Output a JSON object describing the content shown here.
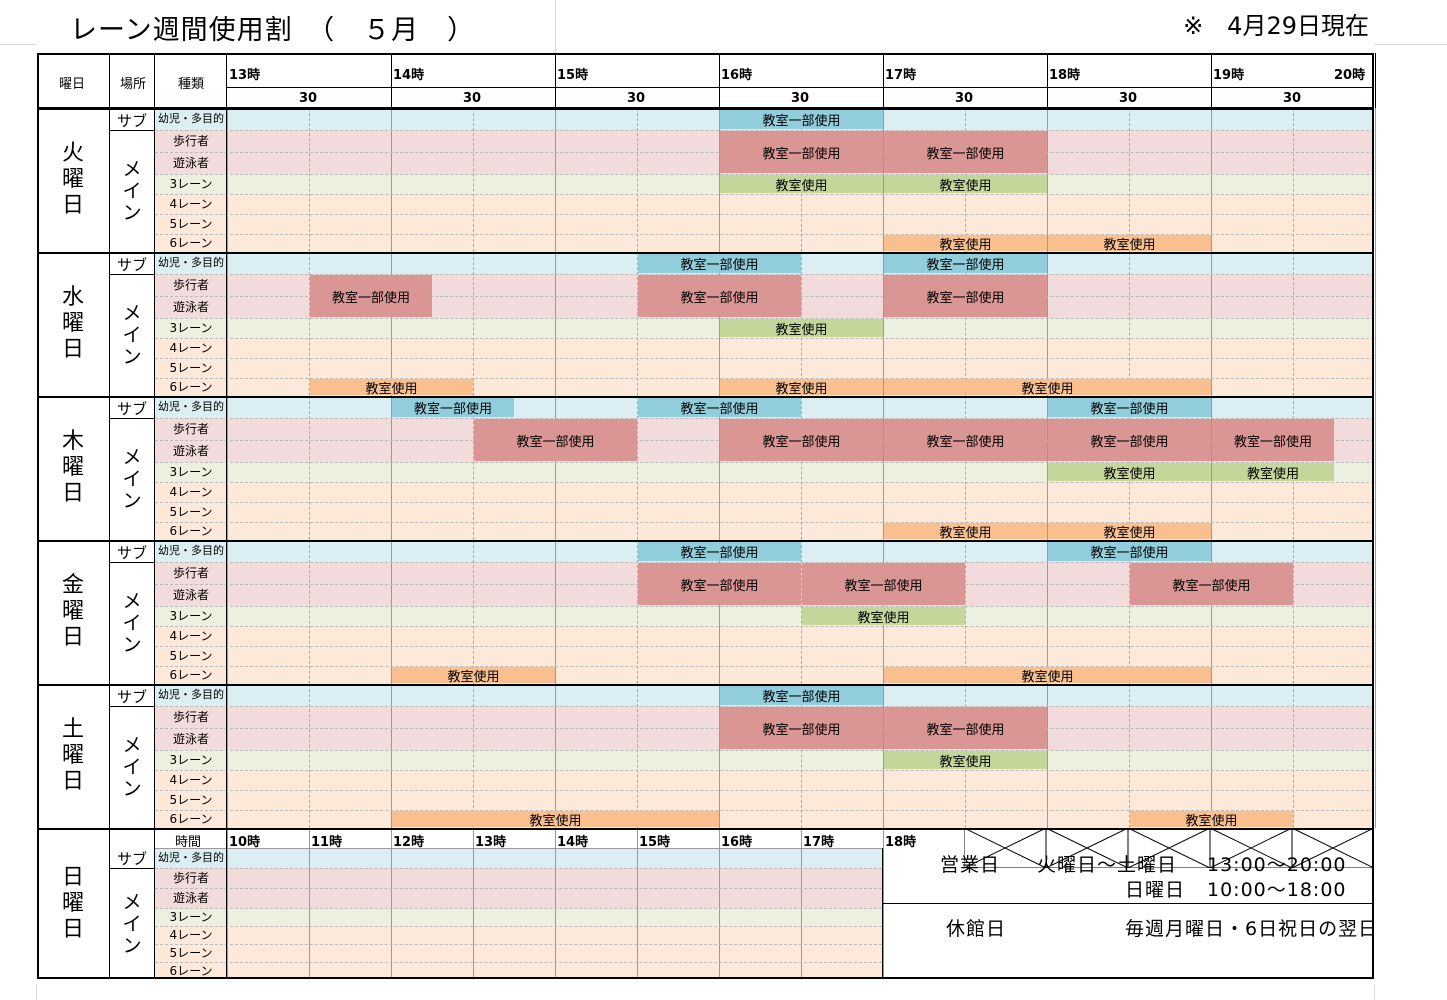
{
  "title": "レーン週間使用割　（　５月　）",
  "as_of": "※　4月29日現在",
  "header": {
    "day_label": "曜日",
    "place_label": "場所",
    "type_label": "種類",
    "hours": [
      "13時",
      "14時",
      "15時",
      "16時",
      "17時",
      "18時",
      "19時",
      "20時"
    ],
    "half_label": "30"
  },
  "places": {
    "sub": "サブ",
    "main": "メイン"
  },
  "categories": [
    "幼児・多目的",
    "歩行者",
    "遊泳者",
    "3レーン",
    "4レーン",
    "5レーン",
    "6レーン"
  ],
  "colors": {
    "sub_bg": "#daeef3",
    "walker_bg": "#f2dcdb",
    "lane3_bg": "#ebf1de",
    "lane_bg": "#fde9d9",
    "partial_sub": "#92cddc",
    "partial_main": "#da9694",
    "lane3_class": "#c4d79b",
    "lane6_class": "#fabf8f"
  },
  "days": [
    {
      "name": "火曜日",
      "chars": [
        "火",
        "曜",
        "日"
      ],
      "blocks": [
        {
          "row": "sub",
          "from": 16,
          "to": 17,
          "label": "教室一部使用"
        },
        {
          "row": "walk",
          "from": 16,
          "to": 17,
          "label": "教室一部使用"
        },
        {
          "row": "walk",
          "from": 17,
          "to": 18,
          "label": "教室一部使用"
        },
        {
          "row": "l3",
          "from": 16,
          "to": 17,
          "label": "教室使用"
        },
        {
          "row": "l3",
          "from": 17,
          "to": 18,
          "label": "教室使用"
        },
        {
          "row": "l6",
          "from": 17,
          "to": 18,
          "label": "教室使用"
        },
        {
          "row": "l6",
          "from": 18,
          "to": 19,
          "label": "教室使用"
        }
      ]
    },
    {
      "name": "水曜日",
      "chars": [
        "水",
        "曜",
        "日"
      ],
      "blocks": [
        {
          "row": "sub",
          "from": 15.5,
          "to": 16.5,
          "label": "教室一部使用"
        },
        {
          "row": "sub",
          "from": 17,
          "to": 18,
          "label": "教室一部使用"
        },
        {
          "row": "walk",
          "from": 13.5,
          "to": 14.25,
          "label": "教室一部使用"
        },
        {
          "row": "walk",
          "from": 15.5,
          "to": 16.5,
          "label": "教室一部使用"
        },
        {
          "row": "walk",
          "from": 17,
          "to": 18,
          "label": "教室一部使用"
        },
        {
          "row": "l3",
          "from": 16,
          "to": 17,
          "label": "教室使用"
        },
        {
          "row": "l6",
          "from": 13.5,
          "to": 14.5,
          "label": "教室使用"
        },
        {
          "row": "l6",
          "from": 16,
          "to": 17,
          "label": "教室使用"
        },
        {
          "row": "l6",
          "from": 17,
          "to": 19,
          "label": "教室使用"
        }
      ]
    },
    {
      "name": "木曜日",
      "chars": [
        "木",
        "曜",
        "日"
      ],
      "blocks": [
        {
          "row": "sub",
          "from": 14,
          "to": 14.75,
          "label": "教室一部使用"
        },
        {
          "row": "sub",
          "from": 15.5,
          "to": 16.5,
          "label": "教室一部使用"
        },
        {
          "row": "sub",
          "from": 18,
          "to": 19,
          "label": "教室一部使用"
        },
        {
          "row": "walk",
          "from": 14.5,
          "to": 15.5,
          "label": "教室一部使用"
        },
        {
          "row": "walk",
          "from": 16,
          "to": 17,
          "label": "教室一部使用"
        },
        {
          "row": "walk",
          "from": 17,
          "to": 18,
          "label": "教室一部使用"
        },
        {
          "row": "walk",
          "from": 18,
          "to": 19,
          "label": "教室一部使用"
        },
        {
          "row": "walk",
          "from": 19,
          "to": 19.75,
          "label": "教室一部使用"
        },
        {
          "row": "l3",
          "from": 18,
          "to": 19,
          "label": "教室使用"
        },
        {
          "row": "l3",
          "from": 19,
          "to": 19.75,
          "label": "教室使用"
        },
        {
          "row": "l6",
          "from": 17,
          "to": 18,
          "label": "教室使用"
        },
        {
          "row": "l6",
          "from": 18,
          "to": 19,
          "label": "教室使用"
        }
      ]
    },
    {
      "name": "金曜日",
      "chars": [
        "金",
        "曜",
        "日"
      ],
      "blocks": [
        {
          "row": "sub",
          "from": 15.5,
          "to": 16.5,
          "label": "教室一部使用"
        },
        {
          "row": "sub",
          "from": 18,
          "to": 19,
          "label": "教室一部使用"
        },
        {
          "row": "walk",
          "from": 15.5,
          "to": 16.5,
          "label": "教室一部使用"
        },
        {
          "row": "walk",
          "from": 16.5,
          "to": 17.5,
          "label": "教室一部使用"
        },
        {
          "row": "walk",
          "from": 18.5,
          "to": 19.5,
          "label": "教室一部使用"
        },
        {
          "row": "l3",
          "from": 16.5,
          "to": 17.5,
          "label": "教室使用"
        },
        {
          "row": "l6",
          "from": 14,
          "to": 15,
          "label": "教室使用"
        },
        {
          "row": "l6",
          "from": 17,
          "to": 19,
          "label": "教室使用"
        }
      ]
    },
    {
      "name": "土曜日",
      "chars": [
        "土",
        "曜",
        "日"
      ],
      "blocks": [
        {
          "row": "sub",
          "from": 16,
          "to": 17,
          "label": "教室一部使用"
        },
        {
          "row": "walk",
          "from": 16,
          "to": 17,
          "label": "教室一部使用"
        },
        {
          "row": "walk",
          "from": 17,
          "to": 18,
          "label": "教室一部使用"
        },
        {
          "row": "l3",
          "from": 17,
          "to": 18,
          "label": "教室使用"
        },
        {
          "row": "l6",
          "from": 14,
          "to": 16,
          "label": "教室使用"
        },
        {
          "row": "l6",
          "from": 18.5,
          "to": 19.5,
          "label": "教室使用"
        }
      ]
    }
  ],
  "sunday": {
    "chars": [
      "日",
      "曜",
      "日"
    ],
    "time_label": "時間",
    "hours": [
      "10時",
      "11時",
      "12時",
      "13時",
      "14時",
      "15時",
      "16時",
      "17時",
      "18時"
    ]
  },
  "info": {
    "business_label": "営業日",
    "business_days1": "火曜日〜土曜日",
    "business_time1": "13:00〜20:00",
    "business_days2": "日曜日",
    "business_time2": "10:00〜18:00",
    "closed_label": "休館日",
    "closed_text": "毎週月曜日・6日祝日の翌日"
  }
}
